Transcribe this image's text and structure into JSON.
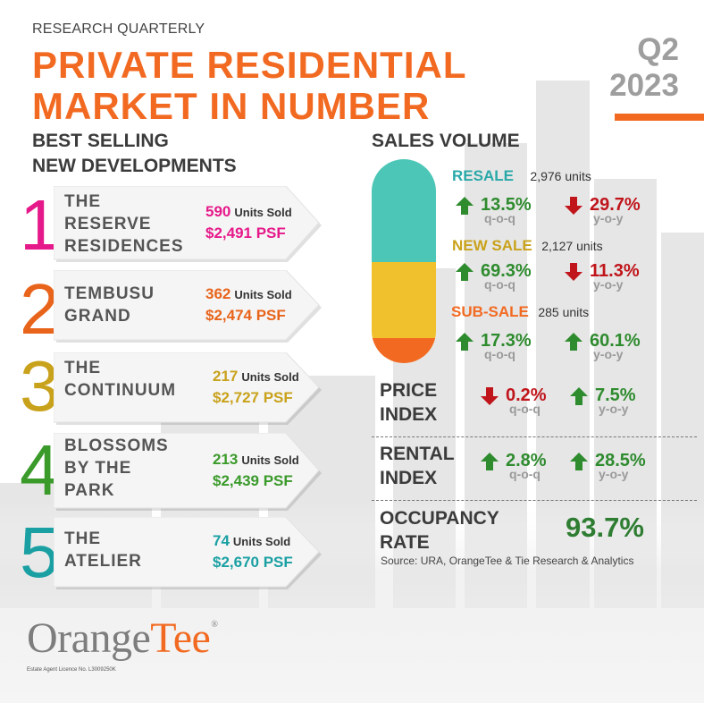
{
  "header": {
    "kicker": "RESEARCH QUARTERLY",
    "title": "PRIVATE RESIDENTIAL\nMARKET IN NUMBER",
    "quarter": "Q2\n2023"
  },
  "best_selling": {
    "heading": "BEST SELLING\nNEW DEVELOPMENTS",
    "units_label": "Units Sold",
    "items": [
      {
        "rank": "1",
        "name": "THE\nRESERVE\nRESIDENCES",
        "units": "590",
        "psf": "$2,491 PSF",
        "color": "#e6198a"
      },
      {
        "rank": "2",
        "name": "TEMBUSU\nGRAND",
        "units": "362",
        "psf": "$2,474 PSF",
        "color": "#e8641b"
      },
      {
        "rank": "3",
        "name": "THE\nCONTINUUM",
        "units": "217",
        "psf": "$2,727 PSF",
        "color": "#c9a21c"
      },
      {
        "rank": "4",
        "name": "BLOSSOMS\nBY THE\nPARK",
        "units": "213",
        "psf": "$2,439 PSF",
        "color": "#3a9a2a"
      },
      {
        "rank": "5",
        "name": "THE\nATELIER",
        "units": "74",
        "psf": "$2,670 PSF",
        "color": "#1aa0a3"
      }
    ]
  },
  "sales_volume": {
    "heading": "SALES VOLUME",
    "segments": [
      {
        "label": "RESALE",
        "units": "2,976 units",
        "color": "#4cc6b7",
        "qoq": {
          "value": "13.5%",
          "dir": "up",
          "caption": "q-o-q"
        },
        "yoy": {
          "value": "29.7%",
          "dir": "down",
          "caption": "y-o-y"
        }
      },
      {
        "label": "NEW SALE",
        "units": "2,127 units",
        "color": "#f0c12c",
        "qoq": {
          "value": "69.3%",
          "dir": "up",
          "caption": "q-o-q"
        },
        "yoy": {
          "value": "11.3%",
          "dir": "down",
          "caption": "y-o-y"
        }
      },
      {
        "label": "SUB-SALE",
        "units": "285 units",
        "color": "#f26a21",
        "qoq": {
          "value": "17.3%",
          "dir": "up",
          "caption": "q-o-q"
        },
        "yoy": {
          "value": "60.1%",
          "dir": "up",
          "caption": "y-o-y"
        }
      }
    ]
  },
  "price_index": {
    "label": "PRICE\nINDEX",
    "qoq": {
      "value": "0.2%",
      "dir": "down",
      "caption": "q-o-q"
    },
    "yoy": {
      "value": "7.5%",
      "dir": "up",
      "caption": "y-o-y"
    }
  },
  "rental_index": {
    "label": "RENTAL\nINDEX",
    "qoq": {
      "value": "2.8%",
      "dir": "up",
      "caption": "q-o-q"
    },
    "yoy": {
      "value": "28.5%",
      "dir": "up",
      "caption": "y-o-y"
    }
  },
  "occupancy": {
    "label": "OCCUPANCY\nRATE",
    "value": "93.7%"
  },
  "source": "Source: URA, OrangeTee & Tie Research & Analytics",
  "brand": {
    "logo_part1": "Orange",
    "logo_part2": "Tee",
    "logo_mark": "®",
    "licence": "Estate Agent Licence No. L3009250K"
  },
  "colors": {
    "accent": "#f26a21",
    "up": "#2e8b2e",
    "down": "#c0151b"
  }
}
